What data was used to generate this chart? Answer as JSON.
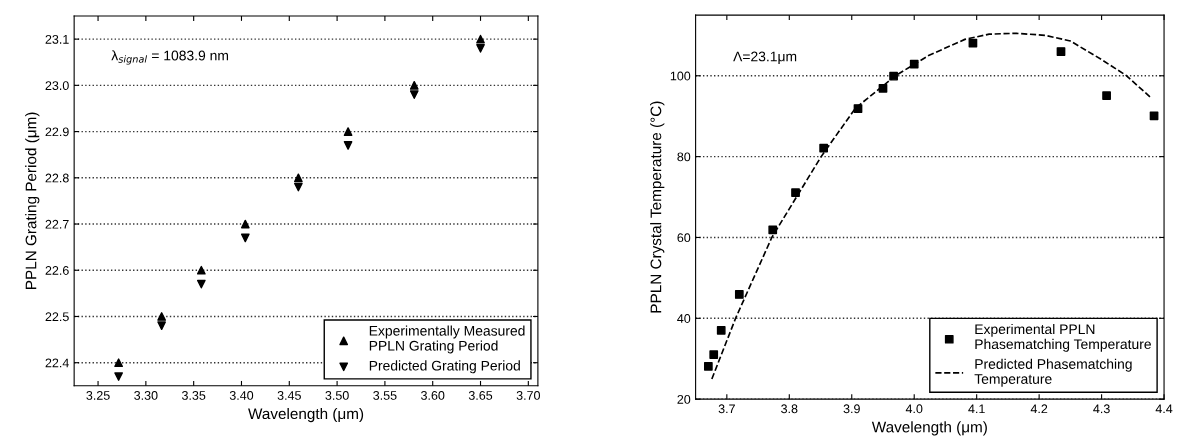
{
  "chart_data": [
    {
      "type": "scatter",
      "xlabel": "Wavelength (μm)",
      "ylabel": "PPLN Grating Period (μm)",
      "annotations": [
        "λ$_{signal}$ = 1083.9 nm"
      ],
      "xlim": [
        3.225,
        3.71
      ],
      "ylim": [
        22.35,
        23.15
      ],
      "xticks": [
        {
          "value": 3.25,
          "label": "3.25"
        },
        {
          "value": 3.3,
          "label": "3.30"
        },
        {
          "value": 3.35,
          "label": "3.35"
        },
        {
          "value": 3.4,
          "label": "3.40"
        },
        {
          "value": 3.45,
          "label": "3.45"
        },
        {
          "value": 3.5,
          "label": "3.50"
        },
        {
          "value": 3.55,
          "label": "3.55"
        },
        {
          "value": 3.6,
          "label": "3.60"
        },
        {
          "value": 3.65,
          "label": "3.65"
        },
        {
          "value": 3.7,
          "label": "3.70"
        }
      ],
      "yticks": [
        22.4,
        22.5,
        22.6,
        22.7,
        22.8,
        22.9,
        {
          "value": 23.0,
          "label": "23.0"
        },
        23.1
      ],
      "grid": "y",
      "legend": "bottom right",
      "series": [
        {
          "name": "Experimentally Measured\nPPLN Grating Period",
          "color": "#000000",
          "marker": "triangle",
          "x": [
            3.2715,
            3.3165,
            3.358,
            3.404,
            3.4595,
            3.5115,
            3.5807,
            3.65
          ],
          "values": [
            22.4,
            22.5,
            22.6,
            22.7,
            22.8,
            22.9,
            23.0,
            23.1
          ]
        },
        {
          "name": "Predicted Grating Period",
          "color": "#000000",
          "marker": "triangle_down",
          "x": [
            3.2715,
            3.3165,
            3.358,
            3.404,
            3.4595,
            3.5115,
            3.5807,
            3.65
          ],
          "values": [
            22.37,
            22.48,
            22.57,
            22.67,
            22.78,
            22.87,
            22.98,
            23.08
          ]
        }
      ]
    },
    {
      "type": "scatter",
      "xlabel": "Wavelength (μm)",
      "ylabel": "PPLN Crystal Temperature (°C)",
      "annotations": [
        "Λ=23.1μm"
      ],
      "xlim": [
        3.65,
        4.4
      ],
      "ylim": [
        20,
        115
      ],
      "xticks": [
        3.7,
        3.8,
        3.9,
        {
          "value": 4.0,
          "label": "4.0"
        },
        4.1,
        4.2,
        4.3,
        4.4
      ],
      "yticks": [
        20,
        40,
        60,
        80,
        100
      ],
      "grid": "y",
      "legend": "bottom right",
      "series": [
        {
          "name": "Experimental PPLN\nPhasematching Temperature",
          "color": "#000000",
          "marker": "square",
          "x": [
            3.6704,
            3.679,
            3.691,
            3.72,
            3.7735,
            3.81,
            3.855,
            3.91,
            3.95,
            3.967,
            4.0,
            4.094,
            4.235,
            4.308,
            4.384
          ],
          "values": [
            28.1,
            31.0,
            37.0,
            45.9,
            61.9,
            71.1,
            82.1,
            91.9,
            96.9,
            99.9,
            102.9,
            108.1,
            106.0,
            95.1,
            90.1
          ]
        },
        {
          "name": "Predicted Phasematching\nTemperature",
          "type": "line",
          "color": "#000000",
          "line_style": "dashed",
          "marker": "none",
          "x": [
            3.676,
            3.714,
            3.772,
            3.851,
            3.906,
            3.97,
            4.023,
            4.081,
            4.12,
            4.163,
            4.21,
            4.25,
            4.3,
            4.34,
            4.378
          ],
          "values": [
            25,
            40,
            60,
            80,
            92,
            100,
            105,
            109,
            110.3,
            110.5,
            110,
            108.6,
            104,
            100,
            94.7
          ]
        }
      ]
    }
  ]
}
